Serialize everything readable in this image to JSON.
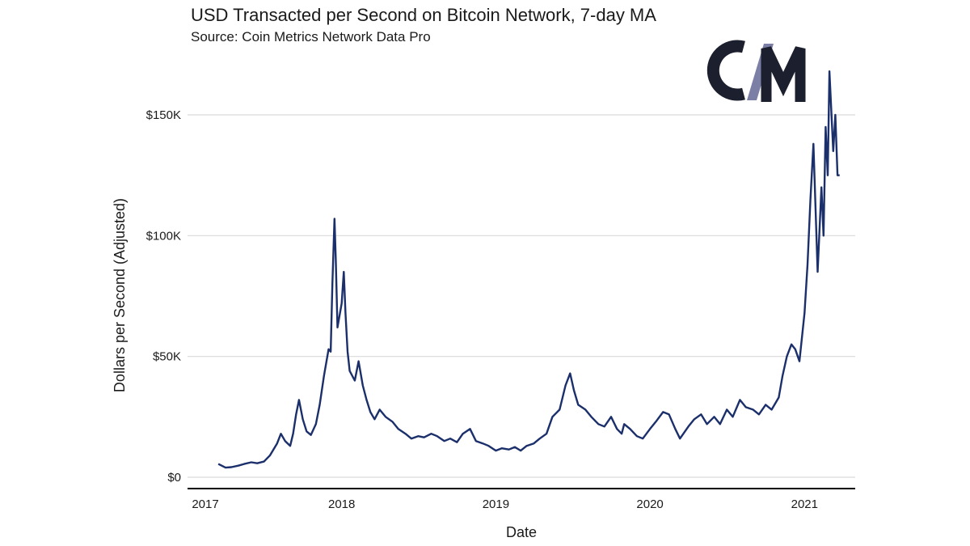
{
  "title": "USD Transacted per Second on Bitcoin Network, 7-day MA",
  "subtitle": "Source: Coin Metrics Network Data Pro",
  "logo": {
    "text": "CM",
    "colors": {
      "dark": "#1c1f2e",
      "slash": "#7b7fa6"
    }
  },
  "chart_data": {
    "type": "line",
    "xlabel": "Date",
    "ylabel": "Dollars per Second (Adjusted)",
    "x_tick_labels": [
      "2017",
      "2018",
      "2019",
      "2020",
      "2021"
    ],
    "y_tick_labels": [
      "$0",
      "$50K",
      "$100K",
      "$150K"
    ],
    "y_ticks": [
      0,
      50000,
      100000,
      150000
    ],
    "xlim": [
      "2017-01-01",
      "2021-05-01"
    ],
    "ylim": [
      0,
      170000
    ],
    "grid": true,
    "series_color": "#1b2f6b",
    "series": [
      {
        "x": [
          "2017-03-15",
          "2017-04-01",
          "2017-04-15",
          "2017-05-01",
          "2017-05-15",
          "2017-06-01",
          "2017-06-15",
          "2017-07-01",
          "2017-07-15",
          "2017-08-01",
          "2017-08-10",
          "2017-08-20",
          "2017-09-01",
          "2017-09-08",
          "2017-09-15",
          "2017-09-22",
          "2017-10-01",
          "2017-10-10",
          "2017-10-20",
          "2017-11-01",
          "2017-11-10",
          "2017-11-20",
          "2017-12-01",
          "2017-12-06",
          "2017-12-10",
          "2017-12-15",
          "2017-12-18",
          "2017-12-22",
          "2018-01-01",
          "2018-01-06",
          "2018-01-10",
          "2018-01-15",
          "2018-01-20",
          "2018-02-01",
          "2018-02-10",
          "2018-02-20",
          "2018-03-01",
          "2018-03-10",
          "2018-03-20",
          "2018-04-01",
          "2018-04-15",
          "2018-05-01",
          "2018-05-15",
          "2018-06-01",
          "2018-06-15",
          "2018-07-01",
          "2018-07-15",
          "2018-08-01",
          "2018-08-15",
          "2018-09-01",
          "2018-09-15",
          "2018-10-01",
          "2018-10-15",
          "2018-11-01",
          "2018-11-15",
          "2018-12-01",
          "2018-12-15",
          "2019-01-01",
          "2019-01-15",
          "2019-02-01",
          "2019-02-15",
          "2019-03-01",
          "2019-03-15",
          "2019-04-01",
          "2019-04-15",
          "2019-05-01",
          "2019-05-15",
          "2019-06-01",
          "2019-06-15",
          "2019-06-26",
          "2019-07-05",
          "2019-07-15",
          "2019-08-01",
          "2019-08-15",
          "2019-09-01",
          "2019-09-15",
          "2019-10-01",
          "2019-10-15",
          "2019-10-26",
          "2019-11-01",
          "2019-11-15",
          "2019-12-01",
          "2019-12-15",
          "2020-01-01",
          "2020-01-15",
          "2020-02-01",
          "2020-02-15",
          "2020-03-01",
          "2020-03-12",
          "2020-03-20",
          "2020-04-01",
          "2020-04-15",
          "2020-05-01",
          "2020-05-15",
          "2020-06-01",
          "2020-06-15",
          "2020-07-01",
          "2020-07-15",
          "2020-08-01",
          "2020-08-15",
          "2020-09-01",
          "2020-09-15",
          "2020-10-01",
          "2020-10-15",
          "2020-11-01",
          "2020-11-10",
          "2020-11-20",
          "2020-12-01",
          "2020-12-10",
          "2020-12-20",
          "2021-01-01",
          "2021-01-08",
          "2021-01-15",
          "2021-01-22",
          "2021-02-01",
          "2021-02-10",
          "2021-02-15",
          "2021-02-20",
          "2021-02-25",
          "2021-03-01",
          "2021-03-10",
          "2021-03-15",
          "2021-03-20",
          "2021-03-25"
        ],
        "y": [
          5500,
          4000,
          4200,
          4800,
          5500,
          6200,
          5800,
          6500,
          9000,
          14000,
          18000,
          15000,
          13000,
          18000,
          26000,
          32000,
          24000,
          19000,
          17500,
          22000,
          30000,
          42000,
          53000,
          52000,
          80000,
          107000,
          90000,
          62000,
          72000,
          85000,
          68000,
          52000,
          44000,
          40000,
          48000,
          38000,
          32000,
          27000,
          24000,
          28000,
          25000,
          23000,
          20000,
          18000,
          16000,
          17000,
          16500,
          18000,
          17000,
          15000,
          16000,
          14500,
          18000,
          20000,
          15000,
          14000,
          13000,
          11000,
          12000,
          11500,
          12500,
          11000,
          13000,
          14000,
          16000,
          18000,
          25000,
          28000,
          38000,
          43000,
          36000,
          30000,
          28000,
          25000,
          22000,
          21000,
          25000,
          20000,
          18000,
          22000,
          20000,
          17000,
          16000,
          20000,
          23000,
          27000,
          26000,
          20000,
          16000,
          18000,
          21000,
          24000,
          26000,
          22000,
          25000,
          22000,
          28000,
          25000,
          32000,
          29000,
          28000,
          26000,
          30000,
          28000,
          33000,
          42000,
          50000,
          55000,
          53000,
          48000,
          68000,
          88000,
          115000,
          138000,
          85000,
          120000,
          100000,
          145000,
          125000,
          168000,
          135000,
          150000,
          125000,
          125000
        ]
      }
    ]
  }
}
